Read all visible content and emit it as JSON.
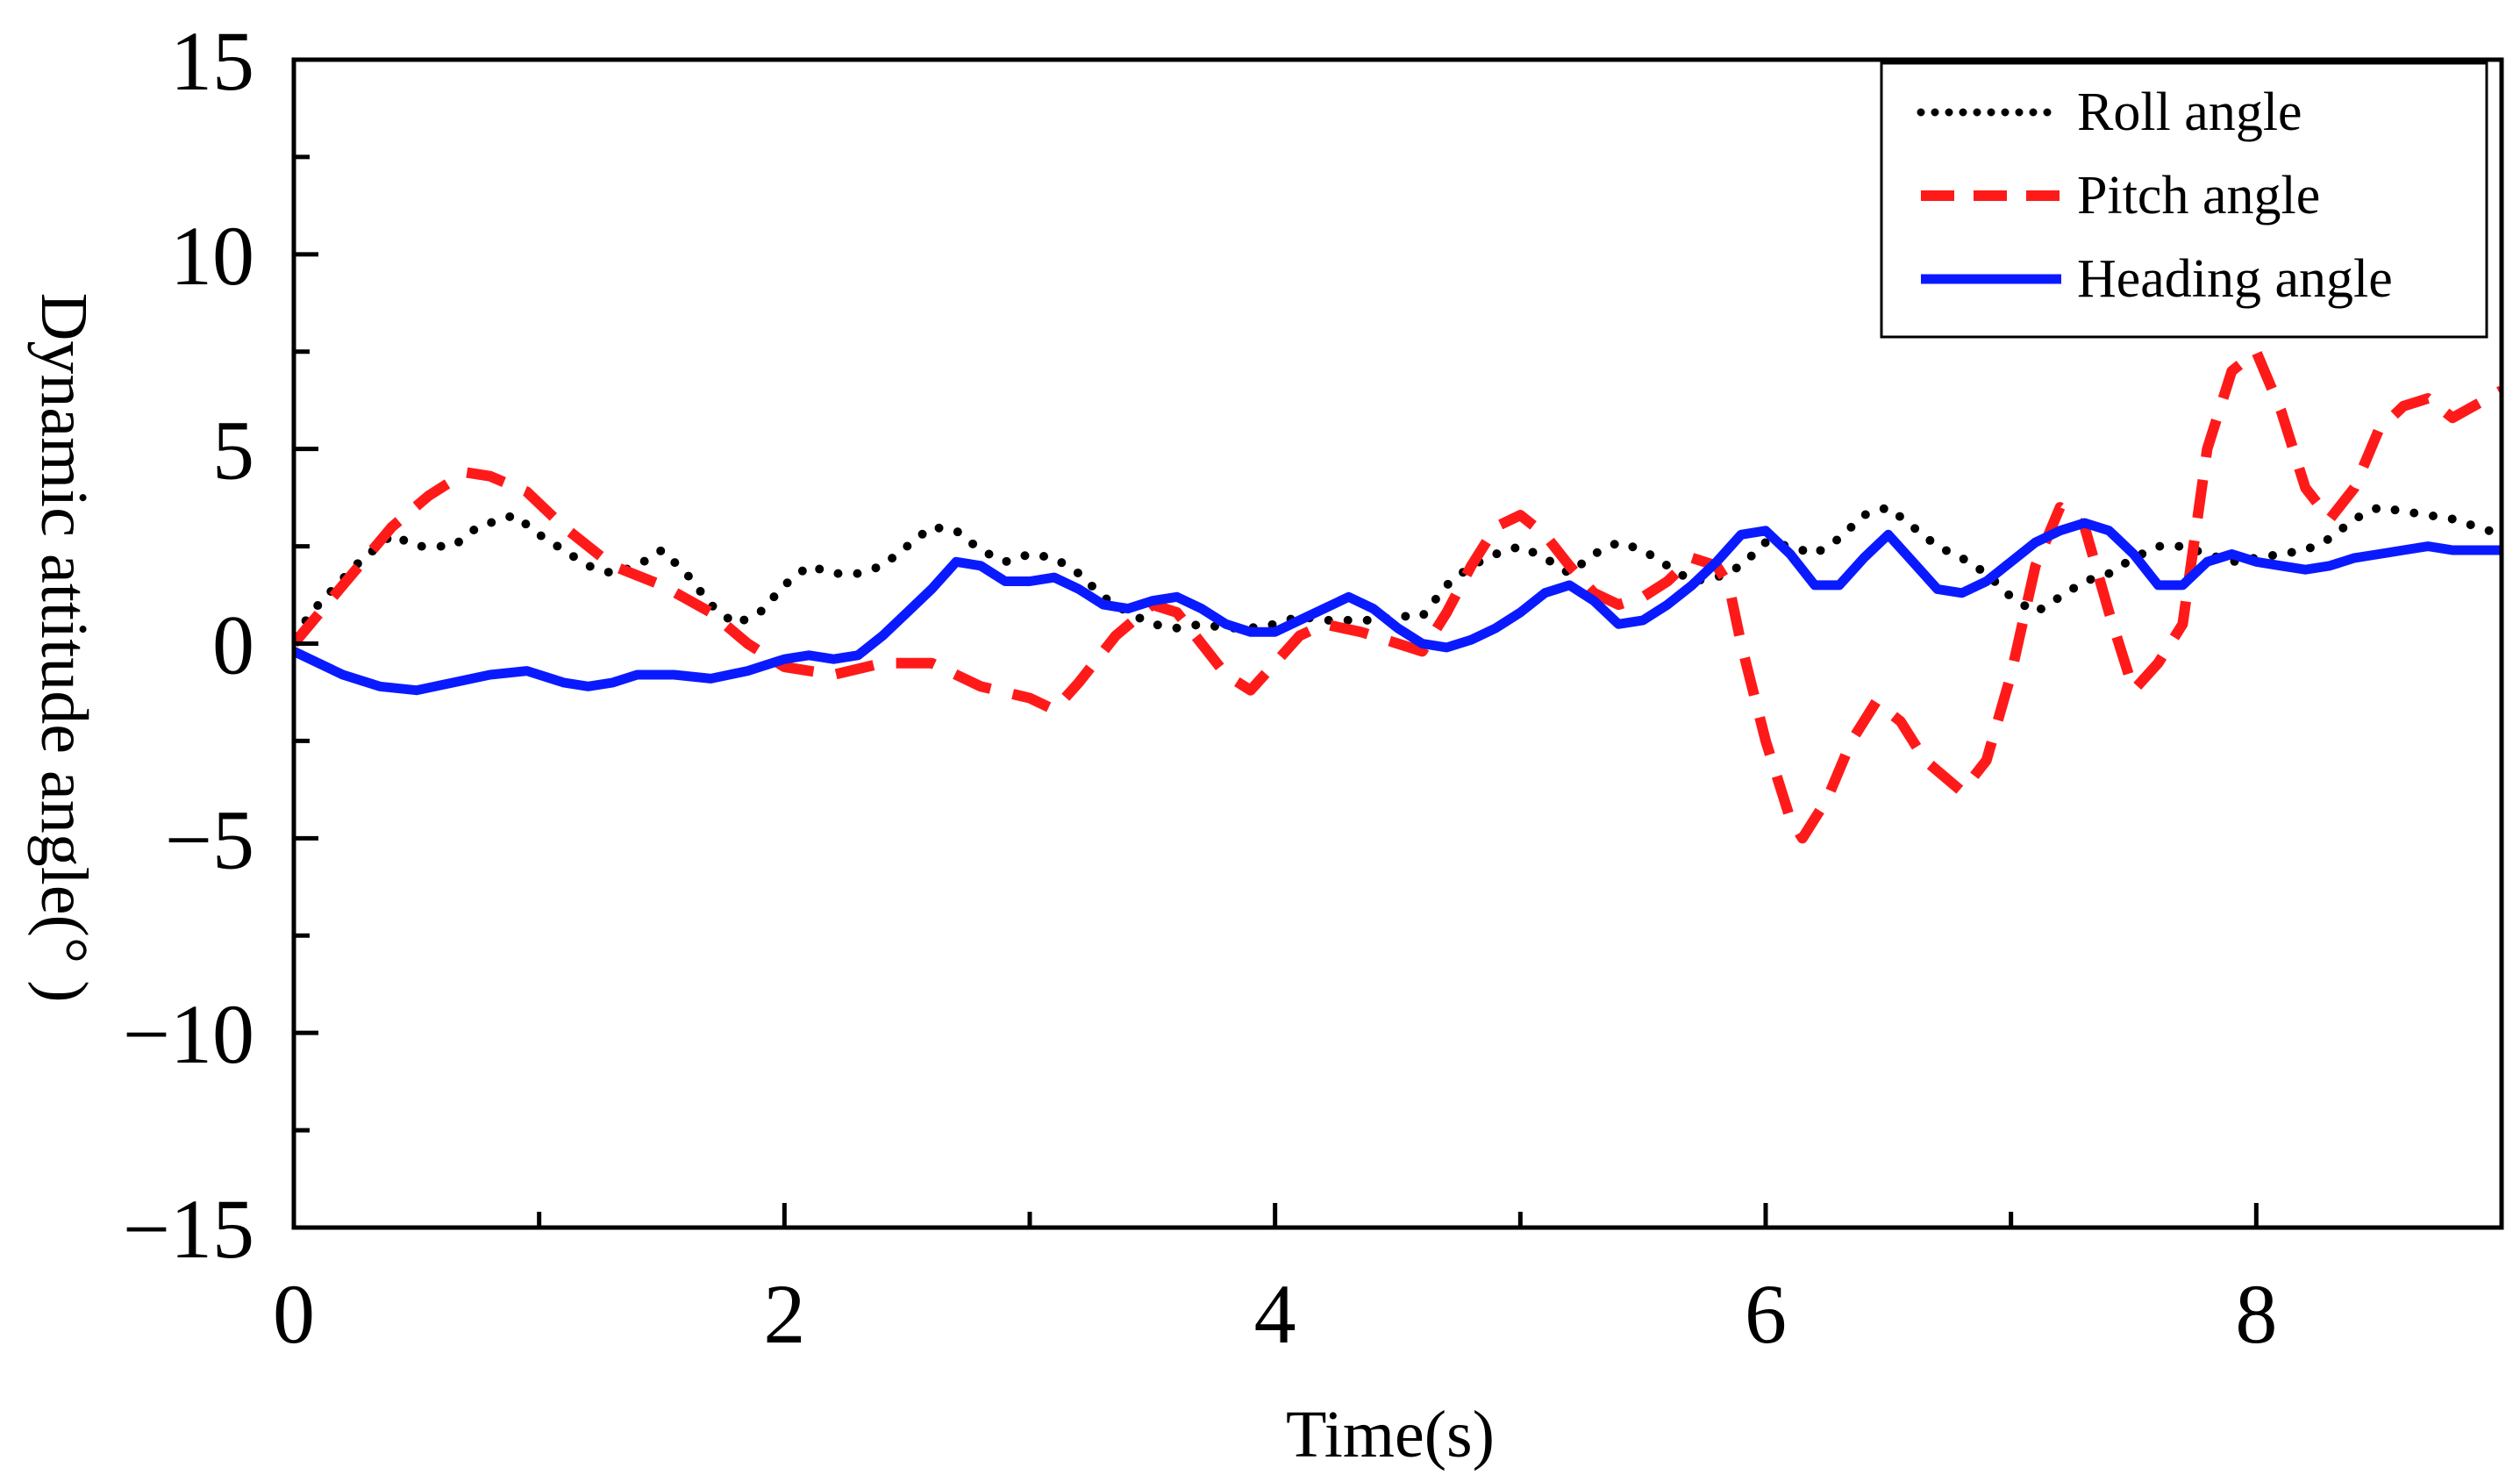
{
  "chart_data": {
    "type": "line",
    "title": "",
    "xlabel": "Time(s)",
    "ylabel": "Dynamic  attitude angle(° )",
    "xlim": [
      0,
      9
    ],
    "ylim": [
      -15,
      15
    ],
    "xticks": [
      0,
      2,
      4,
      6,
      8
    ],
    "yticks": [
      15,
      10,
      5,
      0,
      -5,
      -10,
      -15
    ],
    "xtick_labels": [
      "0",
      "2",
      "4",
      "6",
      "8"
    ],
    "ytick_labels": [
      "15",
      "10",
      "5",
      "0",
      "−5",
      "−10",
      "−15"
    ],
    "grid": false,
    "legend_position": "top-right",
    "series": [
      {
        "name": "Roll angle",
        "color": "#000000",
        "style": "dotted",
        "x": [
          0,
          0.1,
          0.25,
          0.4,
          0.5,
          0.65,
          0.75,
          0.9,
          1.0,
          1.1,
          1.2,
          1.3,
          1.4,
          1.5,
          1.6,
          1.7,
          1.8,
          1.9,
          2.0,
          2.1,
          2.2,
          2.3,
          2.4,
          2.5,
          2.6,
          2.7,
          2.8,
          2.9,
          3.0,
          3.1,
          3.2,
          3.3,
          3.4,
          3.5,
          3.6,
          3.7,
          3.8,
          3.9,
          4.0,
          4.1,
          4.2,
          4.3,
          4.4,
          4.5,
          4.6,
          4.7,
          4.8,
          4.9,
          5.0,
          5.1,
          5.2,
          5.3,
          5.4,
          5.5,
          5.6,
          5.7,
          5.8,
          5.9,
          6.0,
          6.1,
          6.2,
          6.3,
          6.4,
          6.5,
          6.6,
          6.7,
          6.8,
          6.9,
          7.0,
          7.1,
          7.2,
          7.3,
          7.4,
          7.5,
          7.6,
          7.7,
          7.8,
          7.9,
          8.0,
          8.1,
          8.2,
          8.3,
          8.4,
          8.5,
          8.6,
          8.7,
          8.8,
          8.9,
          9.0
        ],
        "values": [
          0.2,
          1.0,
          2.0,
          2.8,
          2.5,
          2.5,
          3.0,
          3.3,
          2.8,
          2.4,
          2.0,
          1.8,
          2.0,
          2.4,
          1.8,
          1.0,
          0.5,
          0.8,
          1.5,
          2.0,
          1.8,
          1.8,
          2.0,
          2.5,
          3.0,
          2.9,
          2.4,
          2.1,
          2.3,
          2.2,
          1.8,
          1.2,
          0.8,
          0.5,
          0.4,
          0.5,
          0.4,
          0.4,
          0.5,
          0.7,
          0.6,
          0.6,
          0.6,
          0.7,
          0.7,
          1.5,
          2.0,
          2.3,
          2.5,
          2.2,
          1.8,
          2.3,
          2.6,
          2.4,
          2.0,
          1.6,
          1.7,
          2.0,
          2.6,
          2.5,
          2.3,
          2.7,
          3.3,
          3.5,
          3.0,
          2.5,
          2.2,
          1.8,
          1.2,
          0.8,
          1.2,
          1.6,
          1.8,
          2.2,
          2.5,
          2.5,
          2.3,
          2.1,
          2.2,
          2.3,
          2.4,
          2.7,
          3.2,
          3.5,
          3.4,
          3.3,
          3.2,
          3.0,
          2.8
        ]
      },
      {
        "name": "Pitch angle",
        "color": "#ff1a1a",
        "style": "dashed",
        "x": [
          0,
          0.2,
          0.4,
          0.55,
          0.7,
          0.8,
          0.95,
          1.1,
          1.3,
          1.5,
          1.7,
          1.85,
          2.0,
          2.2,
          2.4,
          2.6,
          2.8,
          3.0,
          3.1,
          3.2,
          3.35,
          3.5,
          3.6,
          3.7,
          3.8,
          3.9,
          4.0,
          4.1,
          4.2,
          4.35,
          4.5,
          4.6,
          4.7,
          4.8,
          4.9,
          5.0,
          5.1,
          5.2,
          5.3,
          5.4,
          5.5,
          5.6,
          5.7,
          5.8,
          5.85,
          5.9,
          6.0,
          6.1,
          6.15,
          6.25,
          6.35,
          6.45,
          6.55,
          6.65,
          6.8,
          6.9,
          7.0,
          7.1,
          7.2,
          7.3,
          7.4,
          7.5,
          7.6,
          7.7,
          7.8,
          7.9,
          8.0,
          8.1,
          8.2,
          8.3,
          8.4,
          8.5,
          8.6,
          8.7,
          8.8,
          9.0
        ],
        "values": [
          0.0,
          1.5,
          3.0,
          3.8,
          4.4,
          4.3,
          3.9,
          3.0,
          2.0,
          1.5,
          0.8,
          0.0,
          -0.6,
          -0.8,
          -0.5,
          -0.5,
          -1.1,
          -1.4,
          -1.7,
          -1.0,
          0.2,
          1.0,
          0.8,
          0.0,
          -0.8,
          -1.2,
          -0.5,
          0.2,
          0.5,
          0.3,
          0.0,
          -0.2,
          0.8,
          2.0,
          3.0,
          3.3,
          2.8,
          2.0,
          1.3,
          1.0,
          1.2,
          1.6,
          2.2,
          2.0,
          1.5,
          0.0,
          -2.5,
          -4.5,
          -5.0,
          -4.0,
          -2.5,
          -1.5,
          -2.0,
          -3.0,
          -3.8,
          -3.0,
          -0.8,
          2.0,
          3.5,
          3.0,
          0.8,
          -1.2,
          -0.5,
          0.5,
          5.0,
          7.0,
          7.5,
          6.0,
          4.0,
          3.2,
          4.0,
          5.5,
          6.1,
          6.3,
          5.8,
          6.5
        ]
      },
      {
        "name": "Heading angle",
        "color": "#0a1aff",
        "style": "solid",
        "x": [
          0,
          0.2,
          0.35,
          0.5,
          0.65,
          0.8,
          0.95,
          1.1,
          1.2,
          1.3,
          1.4,
          1.55,
          1.7,
          1.85,
          2.0,
          2.1,
          2.2,
          2.3,
          2.4,
          2.5,
          2.6,
          2.7,
          2.8,
          2.9,
          3.0,
          3.1,
          3.2,
          3.3,
          3.4,
          3.5,
          3.6,
          3.7,
          3.8,
          3.9,
          4.0,
          4.1,
          4.2,
          4.3,
          4.4,
          4.5,
          4.6,
          4.7,
          4.8,
          4.9,
          5.0,
          5.1,
          5.2,
          5.3,
          5.4,
          5.5,
          5.6,
          5.7,
          5.8,
          5.9,
          6.0,
          6.1,
          6.2,
          6.3,
          6.4,
          6.5,
          6.6,
          6.7,
          6.8,
          6.9,
          7.0,
          7.1,
          7.2,
          7.3,
          7.4,
          7.5,
          7.6,
          7.7,
          7.8,
          7.9,
          8.0,
          8.1,
          8.2,
          8.3,
          8.4,
          8.5,
          8.6,
          8.7,
          8.8,
          8.9,
          9.0
        ],
        "values": [
          -0.2,
          -0.8,
          -1.1,
          -1.2,
          -1.0,
          -0.8,
          -0.7,
          -1.0,
          -1.1,
          -1.0,
          -0.8,
          -0.8,
          -0.9,
          -0.7,
          -0.4,
          -0.3,
          -0.4,
          -0.3,
          0.2,
          0.8,
          1.4,
          2.1,
          2.0,
          1.6,
          1.6,
          1.7,
          1.4,
          1.0,
          0.9,
          1.1,
          1.2,
          0.9,
          0.5,
          0.3,
          0.3,
          0.6,
          0.9,
          1.2,
          0.9,
          0.4,
          0.0,
          -0.1,
          0.1,
          0.4,
          0.8,
          1.3,
          1.5,
          1.1,
          0.5,
          0.6,
          1.0,
          1.5,
          2.1,
          2.8,
          2.9,
          2.3,
          1.5,
          1.5,
          2.2,
          2.8,
          2.1,
          1.4,
          1.3,
          1.6,
          2.1,
          2.6,
          2.9,
          3.1,
          2.9,
          2.3,
          1.5,
          1.5,
          2.1,
          2.3,
          2.1,
          2.0,
          1.9,
          2.0,
          2.2,
          2.3,
          2.4,
          2.5,
          2.4,
          2.4,
          2.4
        ]
      }
    ]
  }
}
